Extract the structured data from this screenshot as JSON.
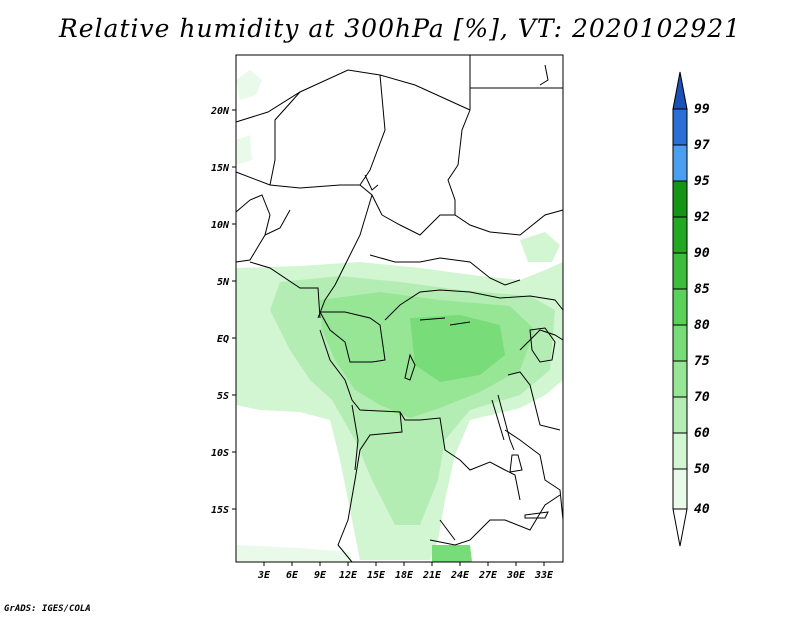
{
  "title": "Relative humidity at 300hPa [%], VT: 2020102921",
  "credit": "GrADS: IGES/COLA",
  "map": {
    "lat_ticks": [
      "20N",
      "15N",
      "10N",
      "5N",
      "EQ",
      "5S",
      "10S",
      "15S"
    ],
    "lon_ticks": [
      "3E",
      "6E",
      "9E",
      "12E",
      "15E",
      "18E",
      "21E",
      "24E",
      "27E",
      "30E",
      "33E"
    ]
  },
  "colorbar": {
    "levels": [
      "40",
      "50",
      "60",
      "70",
      "75",
      "80",
      "85",
      "90",
      "92",
      "95",
      "97",
      "99"
    ],
    "colors": [
      "#ffffff",
      "#eafaea",
      "#d2f5d2",
      "#b4edb4",
      "#96e696",
      "#78dc78",
      "#5ad25a",
      "#3cbe3c",
      "#23a823",
      "#149614",
      "#4a9ff0",
      "#2a6fd6",
      "#1a50b8"
    ]
  }
}
